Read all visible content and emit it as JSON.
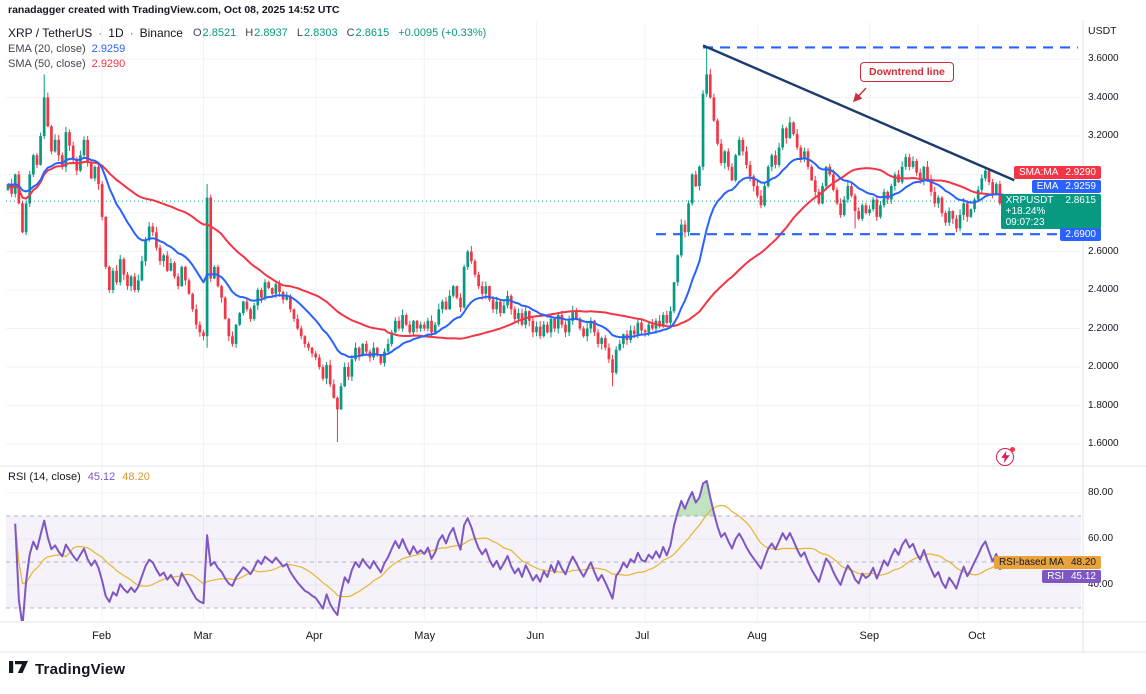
{
  "header": {
    "attribution": "ranadagger created with TradingView.com, Oct 08, 2025 14:52 UTC"
  },
  "legend": {
    "symbol": "XRP / TetherUS",
    "separator": "·",
    "interval": "1D",
    "exchange": "Binance",
    "ohlc": {
      "o_label": "O",
      "o_value": "2.8521",
      "h_label": "H",
      "h_value": "2.8937",
      "l_label": "L",
      "l_value": "2.8303",
      "c_label": "C",
      "c_value": "2.8615",
      "change": "+0.0095 (+0.33%)"
    },
    "ema": {
      "label": "EMA (20, close)",
      "value": "2.9259"
    },
    "sma": {
      "label": "SMA (50, close)",
      "value": "2.9290"
    }
  },
  "axis": {
    "currency": "USDT"
  },
  "badges": {
    "sma": {
      "label": "SMA:MA",
      "value": "2.9290"
    },
    "ema": {
      "label": "EMA",
      "value": "2.9259"
    },
    "symbol": {
      "label": "XRPUSDT",
      "price": "2.8615",
      "change_pct": "+18.24%",
      "countdown": "09:07:23"
    },
    "support": {
      "value": "2.6900"
    },
    "rsi_ma": {
      "label": "RSI-based MA",
      "value": "48.20"
    },
    "rsi": {
      "label": "RSI",
      "value": "45.12"
    }
  },
  "annotations": {
    "downtrend_label": "Downtrend line"
  },
  "rsi_legend": {
    "label": "RSI (14, close)",
    "rsi_value": "45.12",
    "ma_value": "48.20"
  },
  "footer": {
    "brand": "TradingView"
  },
  "colors": {
    "up": "#089981",
    "down": "#f23645",
    "ema": "#2962ff",
    "sma": "#f23645",
    "rsi": "#7e57c2",
    "rsi_ma": "#e8b432",
    "trend": "#1b3c6e",
    "level": "#2962ff",
    "annotation": "#cc2f3c",
    "current": "#089981"
  },
  "chart_data": {
    "type": "candlestick",
    "title": "XRP / TetherUS · 1D · Binance",
    "interval": "1D",
    "start_date": "2025-01-06",
    "end_date": "2025-10-08",
    "closes": [
      2.95,
      2.9,
      3.0,
      2.85,
      2.7,
      2.85,
      3.0,
      3.1,
      3.05,
      3.2,
      3.4,
      3.25,
      3.12,
      3.18,
      3.1,
      3.04,
      3.22,
      3.15,
      3.08,
      3.02,
      3.1,
      3.18,
      3.06,
      2.98,
      3.04,
      2.95,
      2.78,
      2.52,
      2.4,
      2.5,
      2.44,
      2.56,
      2.48,
      2.42,
      2.47,
      2.4,
      2.45,
      2.55,
      2.66,
      2.73,
      2.7,
      2.62,
      2.55,
      2.58,
      2.5,
      2.54,
      2.47,
      2.42,
      2.52,
      2.45,
      2.38,
      2.3,
      2.22,
      2.18,
      2.16,
      2.88,
      2.46,
      2.52,
      2.42,
      2.36,
      2.25,
      2.16,
      2.12,
      2.22,
      2.28,
      2.34,
      2.3,
      2.25,
      2.32,
      2.4,
      2.36,
      2.44,
      2.41,
      2.38,
      2.43,
      2.39,
      2.35,
      2.37,
      2.3,
      2.25,
      2.2,
      2.16,
      2.12,
      2.1,
      2.07,
      2.05,
      2.0,
      1.94,
      2.01,
      1.91,
      1.84,
      1.78,
      1.9,
      2.0,
      1.95,
      2.04,
      2.1,
      2.06,
      2.12,
      2.08,
      2.05,
      2.1,
      2.06,
      2.02,
      2.08,
      2.12,
      2.18,
      2.24,
      2.2,
      2.27,
      2.22,
      2.18,
      2.24,
      2.2,
      2.22,
      2.2,
      2.24,
      2.18,
      2.22,
      2.3,
      2.34,
      2.3,
      2.37,
      2.42,
      2.36,
      2.31,
      2.52,
      2.6,
      2.55,
      2.48,
      2.42,
      2.38,
      2.42,
      2.35,
      2.3,
      2.34,
      2.28,
      2.32,
      2.37,
      2.3,
      2.25,
      2.28,
      2.22,
      2.29,
      2.24,
      2.18,
      2.21,
      2.16,
      2.22,
      2.18,
      2.25,
      2.2,
      2.27,
      2.22,
      2.18,
      2.24,
      2.29,
      2.25,
      2.2,
      2.16,
      2.2,
      2.24,
      2.18,
      2.12,
      2.15,
      2.1,
      2.04,
      1.97,
      2.09,
      2.12,
      2.17,
      2.14,
      2.19,
      2.17,
      2.23,
      2.19,
      2.18,
      2.22,
      2.2,
      2.24,
      2.21,
      2.27,
      2.23,
      2.29,
      2.44,
      2.58,
      2.74,
      2.7,
      2.85,
      3.0,
      2.94,
      3.04,
      3.42,
      3.52,
      3.4,
      3.28,
      3.16,
      3.06,
      3.12,
      3.04,
      2.97,
      3.1,
      3.18,
      3.12,
      3.05,
      2.99,
      2.94,
      2.89,
      2.84,
      2.94,
      3.04,
      3.1,
      3.05,
      3.14,
      3.24,
      3.19,
      3.27,
      3.21,
      3.14,
      3.08,
      3.12,
      3.04,
      2.97,
      2.91,
      2.85,
      2.94,
      3.04,
      3.0,
      2.92,
      2.85,
      2.79,
      2.87,
      2.94,
      2.89,
      2.81,
      2.77,
      2.84,
      2.8,
      2.82,
      2.87,
      2.78,
      2.84,
      2.91,
      2.87,
      2.94,
      3.0,
      2.96,
      3.04,
      3.09,
      3.04,
      3.07,
      3.01,
      2.97,
      3.04,
      2.97,
      2.91,
      2.85,
      2.88,
      2.8,
      2.75,
      2.81,
      2.77,
      2.72,
      2.79,
      2.85,
      2.78,
      2.82,
      2.87,
      2.92,
      2.98,
      3.02,
      2.96,
      2.9,
      2.95,
      2.85,
      2.8615
    ],
    "wick_overrides": {
      "10": {
        "h": 3.52
      },
      "55": {
        "h": 2.95,
        "l": 2.1
      },
      "91": {
        "l": 1.61
      },
      "167": {
        "l": 1.9
      },
      "193": {
        "h": 3.66
      },
      "234": {
        "l": 2.72
      },
      "262": {
        "l": 2.7
      }
    },
    "indicators": {
      "ema_period": 20,
      "sma_period": 50,
      "rsi_period": 14,
      "rsi_ma_period": 14,
      "ema_last": 2.9259,
      "sma_last": 2.929,
      "rsi_last": 45.12,
      "rsi_ma_last": 48.2
    },
    "overlays": {
      "resistance": {
        "price": 3.66,
        "from_day": 192
      },
      "support": {
        "price": 2.69,
        "from_day": 179
      },
      "trendline": {
        "from_day": 192,
        "from_price": 3.67,
        "to_day": 278,
        "to_price": 2.97
      },
      "current_price": 2.8615
    },
    "price_axis": {
      "grid_prices": [
        1.6,
        1.8,
        2.0,
        2.2,
        2.4,
        2.6,
        2.8,
        3.0,
        3.2,
        3.4,
        3.6
      ],
      "labels": [
        {
          "text": "3.6000",
          "value": 3.6
        },
        {
          "text": "3.4000",
          "value": 3.4
        },
        {
          "text": "3.2000",
          "value": 3.2
        },
        {
          "text": "2.6000",
          "value": 2.6
        },
        {
          "text": "2.4000",
          "value": 2.4
        },
        {
          "text": "2.2000",
          "value": 2.2
        },
        {
          "text": "2.0000",
          "value": 2.0
        },
        {
          "text": "1.8000",
          "value": 1.8
        },
        {
          "text": "1.6000",
          "value": 1.6
        }
      ]
    },
    "rsi_axis": {
      "labels": [
        {
          "text": "80.00",
          "value": 80
        },
        {
          "text": "60.00",
          "value": 60
        },
        {
          "text": "40.00",
          "value": 40
        }
      ],
      "band": [
        30,
        70
      ],
      "mid": 50
    },
    "months": [
      {
        "label": "Feb",
        "day": 26
      },
      {
        "label": "Mar",
        "day": 54
      },
      {
        "label": "Apr",
        "day": 85
      },
      {
        "label": "May",
        "day": 115
      },
      {
        "label": "Jun",
        "day": 146
      },
      {
        "label": "Jul",
        "day": 176
      },
      {
        "label": "Aug",
        "day": 207
      },
      {
        "label": "Sep",
        "day": 238
      },
      {
        "label": "Oct",
        "day": 268
      }
    ]
  }
}
